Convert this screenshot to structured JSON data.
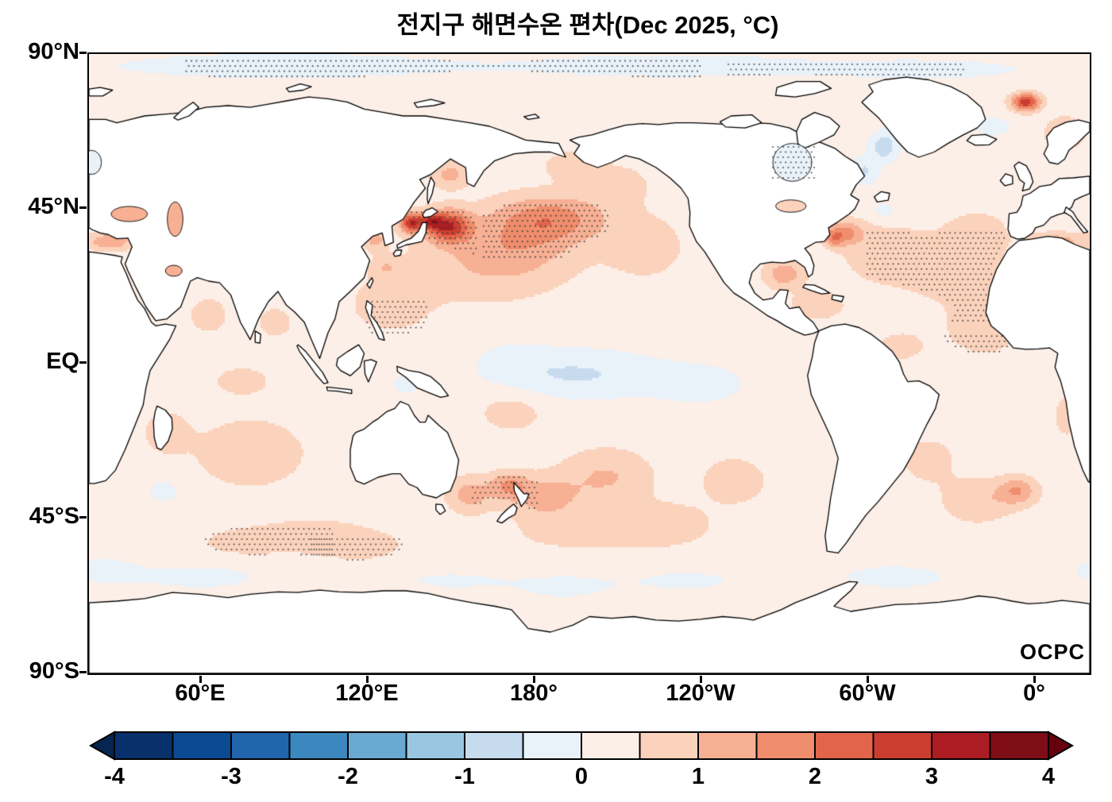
{
  "title": "전지구 해면수온 편차(Dec 2025, °C)",
  "watermark": "OCPC",
  "axes": {
    "x_ticks": [
      {
        "label": "60°E",
        "lon": 60
      },
      {
        "label": "120°E",
        "lon": 120
      },
      {
        "label": "180°",
        "lon": 180
      },
      {
        "label": "120°W",
        "lon": 240
      },
      {
        "label": "60°W",
        "lon": 300
      },
      {
        "label": "0°",
        "lon": 360
      }
    ],
    "y_ticks": [
      {
        "label": "90°N",
        "lat": 90
      },
      {
        "label": "45°N",
        "lat": 45
      },
      {
        "label": "EQ",
        "lat": 0
      },
      {
        "label": "45°S",
        "lat": -45
      },
      {
        "label": "90°S",
        "lat": -90
      }
    ]
  },
  "colorbar": {
    "labels": [
      "-4",
      "-3",
      "-2",
      "-1",
      "0",
      "1",
      "2",
      "3",
      "4"
    ],
    "levels": [
      -4,
      -3.5,
      -3,
      -2.5,
      -2,
      -1.5,
      -1,
      -0.5,
      0,
      0.5,
      1,
      1.5,
      2,
      2.5,
      3,
      3.5,
      4
    ],
    "colors": [
      "#08306b",
      "#0a4a93",
      "#2166ac",
      "#3d87bf",
      "#6aa9d2",
      "#99c6e0",
      "#c6dcee",
      "#e9f1f9",
      "#fcefe7",
      "#fbd2bc",
      "#f7b094",
      "#f08d6c",
      "#e2654b",
      "#cb3e2f",
      "#ac1c23",
      "#7f0d15"
    ],
    "arrow_left_color": "#062550",
    "arrow_right_color": "#67000d"
  },
  "chart_data": {
    "type": "heatmap",
    "title": "전지구 해면수온 편차(Dec 2025, °C)",
    "subtitle_en": "Global sea surface temperature anomaly",
    "date": "Dec 2025",
    "units": "°C",
    "projection": "equirectangular",
    "lon_range": [
      20,
      380
    ],
    "lat_range": [
      -90,
      90
    ],
    "value_limits": [
      -4,
      4
    ],
    "contour_interval": 0.5,
    "base_anomaly": 0.25,
    "anomaly_features": [
      {
        "name": "kuroshio_core",
        "lon": 149,
        "lat": 40,
        "rlon": 8,
        "rlat": 4.5,
        "amp": 2.6
      },
      {
        "name": "kuroshio_spot",
        "lon": 143,
        "lat": 41.5,
        "rlon": 3.5,
        "rlat": 2.2,
        "amp": 1.6
      },
      {
        "name": "japan_sea",
        "lon": 136,
        "lat": 41,
        "rlon": 4,
        "rlat": 3,
        "amp": 2.6
      },
      {
        "name": "yellow_sea",
        "lon": 123,
        "lat": 36,
        "rlon": 4,
        "rlat": 3,
        "amp": 0.9
      },
      {
        "name": "east_china_sea",
        "lon": 127,
        "lat": 28,
        "rlon": 5,
        "rlat": 3,
        "amp": 0.6
      },
      {
        "name": "np_central",
        "lon": 186,
        "lat": 42,
        "rlon": 20,
        "rlat": 7,
        "amp": 1.5
      },
      {
        "name": "np_south",
        "lon": 172,
        "lat": 33,
        "rlon": 22,
        "rlat": 9,
        "amp": 0.75
      },
      {
        "name": "np_broad",
        "lon": 160,
        "lat": 28,
        "rlon": 30,
        "rlat": 12,
        "amp": 0.45
      },
      {
        "name": "philippine_sea",
        "lon": 128,
        "lat": 17,
        "rlon": 14,
        "rlat": 8,
        "amp": 0.5
      },
      {
        "name": "ne_pacific",
        "lon": 220,
        "lat": 34,
        "rlon": 14,
        "rlat": 9,
        "amp": 0.55
      },
      {
        "name": "gulf_alaska",
        "lon": 210,
        "lat": 52,
        "rlon": 12,
        "rlat": 6,
        "amp": 0.5
      },
      {
        "name": "bering_sea",
        "lon": 194,
        "lat": 57.5,
        "rlon": 9,
        "rlat": 4,
        "amp": 0.7
      },
      {
        "name": "okhotsk_sea",
        "lon": 150,
        "lat": 55,
        "rlon": 7,
        "rlat": 4,
        "amp": 0.9
      },
      {
        "name": "equatorial_pacific_cool",
        "lon": 196,
        "lat": -3,
        "rlon": 30,
        "rlat": 7,
        "amp": -0.8
      },
      {
        "name": "east_eq_pacific_cool",
        "lon": 240,
        "lat": -6,
        "rlon": 18,
        "rlat": 6,
        "amp": -0.45
      },
      {
        "name": "west_eq_pacific_cool",
        "lon": 172,
        "lat": 2,
        "rlon": 14,
        "rlat": 6,
        "amp": -0.25
      },
      {
        "name": "spcz_warm",
        "lon": 172,
        "lat": -14,
        "rlon": 12,
        "rlat": 6,
        "amp": 0.5
      },
      {
        "name": "tasman_sea",
        "lon": 157,
        "lat": -38,
        "rlon": 8,
        "rlat": 5,
        "amp": 1.0
      },
      {
        "name": "nz_north",
        "lon": 171,
        "lat": -35.5,
        "rlon": 7,
        "rlat": 4,
        "amp": 1.2
      },
      {
        "name": "nz_east",
        "lon": 184,
        "lat": -39,
        "rlon": 12,
        "rlat": 6,
        "amp": 1.0
      },
      {
        "name": "south_pacific_warm",
        "lon": 206,
        "lat": -33,
        "rlon": 16,
        "rlat": 8,
        "amp": 0.8
      },
      {
        "name": "sp_south",
        "lon": 228,
        "lat": -46,
        "rlon": 16,
        "rlat": 6,
        "amp": 0.45
      },
      {
        "name": "se_pacific",
        "lon": 252,
        "lat": -34,
        "rlon": 12,
        "rlat": 7,
        "amp": 0.55
      },
      {
        "name": "pac_45s_band",
        "lon": 200,
        "lat": -50,
        "rlon": 35,
        "rlat": 6,
        "amp": 0.35
      },
      {
        "name": "arabian_sea",
        "lon": 63,
        "lat": 14,
        "rlon": 8,
        "rlat": 6,
        "amp": 0.45
      },
      {
        "name": "bay_of_bengal",
        "lon": 87,
        "lat": 12,
        "rlon": 7,
        "rlat": 5,
        "amp": 0.45
      },
      {
        "name": "indian_central",
        "lon": 78,
        "lat": -26,
        "rlon": 18,
        "rlat": 9,
        "amp": 0.75
      },
      {
        "name": "indian_west",
        "lon": 48,
        "lat": -20,
        "rlon": 8,
        "rlat": 6,
        "amp": 0.6
      },
      {
        "name": "indian_se",
        "lon": 100,
        "lat": -50,
        "rlon": 20,
        "rlat": 5,
        "amp": 0.55
      },
      {
        "name": "indian_s_mid",
        "lon": 75,
        "lat": -52,
        "rlon": 15,
        "rlat": 4,
        "amp": 0.45
      },
      {
        "name": "aus_south",
        "lon": 118,
        "lat": -53,
        "rlon": 14,
        "rlat": 4,
        "amp": 0.5
      },
      {
        "name": "indian_eq",
        "lon": 75,
        "lat": -5,
        "rlon": 15,
        "rlat": 6,
        "amp": 0.35
      },
      {
        "name": "banda_cool",
        "lon": 134,
        "lat": -6,
        "rlon": 7,
        "rlat": 4,
        "amp": -0.35
      },
      {
        "name": "sw_indian_cool",
        "lon": 47,
        "lat": -37,
        "rlon": 8,
        "rlat": 5,
        "amp": -0.35
      },
      {
        "name": "gulf_stream",
        "lon": 291,
        "lat": 38,
        "rlon": 7,
        "rlat": 3.5,
        "amp": 1.5
      },
      {
        "name": "gulf_stream_spot",
        "lon": 288,
        "lat": 36,
        "rlon": 3,
        "rlat": 2,
        "amp": 0.8
      },
      {
        "name": "sargasso",
        "lon": 305,
        "lat": 32,
        "rlon": 14,
        "rlat": 8,
        "amp": 0.55
      },
      {
        "name": "atl_subtropics",
        "lon": 330,
        "lat": 28,
        "rlon": 20,
        "rlat": 11,
        "amp": 0.5
      },
      {
        "name": "azores",
        "lon": 340,
        "lat": 38,
        "rlon": 10,
        "rlat": 6,
        "amp": 0.5
      },
      {
        "name": "atl_tropics",
        "lon": 342,
        "lat": 10,
        "rlon": 14,
        "rlat": 8,
        "amp": 0.5
      },
      {
        "name": "atl_eq_west",
        "lon": 312,
        "lat": 5,
        "rlon": 10,
        "rlat": 5,
        "amp": 0.4
      },
      {
        "name": "gulf_of_mexico",
        "lon": 270,
        "lat": 26,
        "rlon": 7,
        "rlat": 4,
        "amp": 1.1
      },
      {
        "name": "caribbean",
        "lon": 282,
        "lat": 17,
        "rlon": 9,
        "rlat": 4,
        "amp": 0.7
      },
      {
        "name": "labrador_cool1",
        "lon": 299,
        "lat": 56,
        "rlon": 5,
        "rlat": 4,
        "amp": -0.8
      },
      {
        "name": "labrador_cool2",
        "lon": 306,
        "lat": 63,
        "rlon": 5,
        "rlat": 4,
        "amp": -1.1
      },
      {
        "name": "baffin_cool",
        "lon": 313,
        "lat": 70,
        "rlon": 5,
        "rlat": 4,
        "amp": -0.9
      },
      {
        "name": "iceland_cool",
        "lon": 345,
        "lat": 69,
        "rlon": 7,
        "rlat": 3,
        "amp": -0.5
      },
      {
        "name": "norway_warm",
        "lon": 371,
        "lat": 67,
        "rlon": 6,
        "rlat": 4,
        "amp": 1.1
      },
      {
        "name": "fram_strait_spot",
        "lon": 357,
        "lat": 76,
        "rlon": 5,
        "rlat": 2.5,
        "amp": 2.6
      },
      {
        "name": "med_east",
        "lon": 28,
        "lat": 35.5,
        "rlon": 8,
        "rlat": 2.5,
        "amp": 1.2
      },
      {
        "name": "med_west",
        "lon": 368,
        "lat": 35.5,
        "rlon": 9,
        "rlat": 2.5,
        "amp": 1.1
      },
      {
        "name": "s_atl_spot",
        "lon": 354,
        "lat": -37,
        "rlon": 7,
        "rlat": 4,
        "amp": 1.2
      },
      {
        "name": "s_atl_warm",
        "lon": 340,
        "lat": -40,
        "rlon": 12,
        "rlat": 6,
        "amp": 0.7
      },
      {
        "name": "s_atl_mid",
        "lon": 322,
        "lat": -28,
        "rlon": 12,
        "rlat": 8,
        "amp": 0.4
      },
      {
        "name": "newfoundland_cool",
        "lon": 306,
        "lat": 44.5,
        "rlon": 4,
        "rlat": 2.5,
        "amp": -0.5
      },
      {
        "name": "benguela",
        "lon": 372,
        "lat": -15,
        "rlon": 6,
        "rlat": 8,
        "amp": 0.4
      },
      {
        "name": "arctic_cool1",
        "lon": 90,
        "lat": 86.5,
        "rlon": 60,
        "rlat": 3.5,
        "amp": -0.65
      },
      {
        "name": "arctic_cool2",
        "lon": 230,
        "lat": 86.5,
        "rlon": 55,
        "rlat": 3.5,
        "amp": -0.55
      },
      {
        "name": "arctic_cool3",
        "lon": 320,
        "lat": 85.5,
        "rlon": 35,
        "rlat": 3,
        "amp": -0.5
      },
      {
        "name": "southern_ocean1",
        "lon": 60,
        "lat": -62,
        "rlon": 30,
        "rlat": 5,
        "amp": -0.35
      },
      {
        "name": "southern_ocean2",
        "lon": 150,
        "lat": -63,
        "rlon": 25,
        "rlat": 4,
        "amp": -0.3
      },
      {
        "name": "southern_ocean3",
        "lon": 235,
        "lat": -63,
        "rlon": 30,
        "rlat": 5,
        "amp": -0.3
      },
      {
        "name": "southern_ocean4",
        "lon": 310,
        "lat": -62,
        "rlon": 28,
        "rlat": 5,
        "amp": -0.35
      },
      {
        "name": "southern_ocean5",
        "lon": 25,
        "lat": -60,
        "rlon": 12,
        "rlat": 4,
        "amp": -0.4
      },
      {
        "name": "ross_pale",
        "lon": 190,
        "lat": -65,
        "rlon": 20,
        "rlat": 5,
        "amp": -0.3
      }
    ],
    "stipple_regions": [
      {
        "name": "north_pacific",
        "lon": [
          162,
          216
        ],
        "lat": [
          30,
          46
        ],
        "cond": "gt",
        "value": 0.9
      },
      {
        "name": "nw_pacific",
        "lon": [
          136,
          160
        ],
        "lat": [
          32,
          44
        ],
        "cond": "gt",
        "value": 1.2
      },
      {
        "name": "west_pac_tropics",
        "lon": [
          120,
          142
        ],
        "lat": [
          4,
          18
        ],
        "cond": "gt",
        "value": 0.4
      },
      {
        "name": "north_atlantic",
        "lon": [
          300,
          356
        ],
        "lat": [
          12,
          38
        ],
        "cond": "gt",
        "value": 0.55
      },
      {
        "name": "eq_atlantic",
        "lon": [
          328,
          352
        ],
        "lat": [
          -4,
          8
        ],
        "cond": "gt",
        "value": 0.45
      },
      {
        "name": "south_indian",
        "lon": [
          62,
          108
        ],
        "lat": [
          -57,
          -48
        ],
        "cond": "gt",
        "value": 0.45
      },
      {
        "name": "south_of_australia",
        "lon": [
          100,
          138
        ],
        "lat": [
          -58,
          -51
        ],
        "cond": "gt",
        "value": 0.45
      },
      {
        "name": "near_new_zealand",
        "lon": [
          158,
          182
        ],
        "lat": [
          -42,
          -30
        ],
        "cond": "gt",
        "value": 0.9
      },
      {
        "name": "arctic_band_west",
        "lon": [
          55,
          240
        ],
        "lat": [
          83,
          88
        ],
        "cond": "lt",
        "value": 0
      },
      {
        "name": "arctic_band_east",
        "lon": [
          250,
          335
        ],
        "lat": [
          83,
          87
        ],
        "cond": "lt",
        "value": 0
      },
      {
        "name": "hudson_bay",
        "lon": [
          266,
          281
        ],
        "lat": [
          53,
          63
        ],
        "cond": "all",
        "value": 0,
        "layer": "post"
      }
    ],
    "inland_seas": [
      {
        "name": "black_sea",
        "lon": 34.5,
        "lat": 43.5,
        "rlon": 6.5,
        "rlat": 2.2,
        "value": 1.3
      },
      {
        "name": "caspian_sea",
        "lon": 51,
        "lat": 42,
        "rlon": 2.8,
        "rlat": 5,
        "value": 1.0
      },
      {
        "name": "baltic_sea",
        "lon": 21,
        "lat": 58.5,
        "rlon": 3.5,
        "rlat": 3.5,
        "value": -0.4
      },
      {
        "name": "hudson_bay",
        "lon": 273,
        "lat": 58.5,
        "rlon": 7,
        "rlat": 5.5,
        "value": -0.45
      },
      {
        "name": "great_lakes",
        "lon": 272.5,
        "lat": 45.8,
        "rlon": 5.5,
        "rlat": 1.8,
        "value": 0.5
      },
      {
        "name": "persian_gulf",
        "lon": 50.5,
        "lat": 27,
        "rlon": 3,
        "rlat": 1.6,
        "value": 1.4
      }
    ]
  }
}
